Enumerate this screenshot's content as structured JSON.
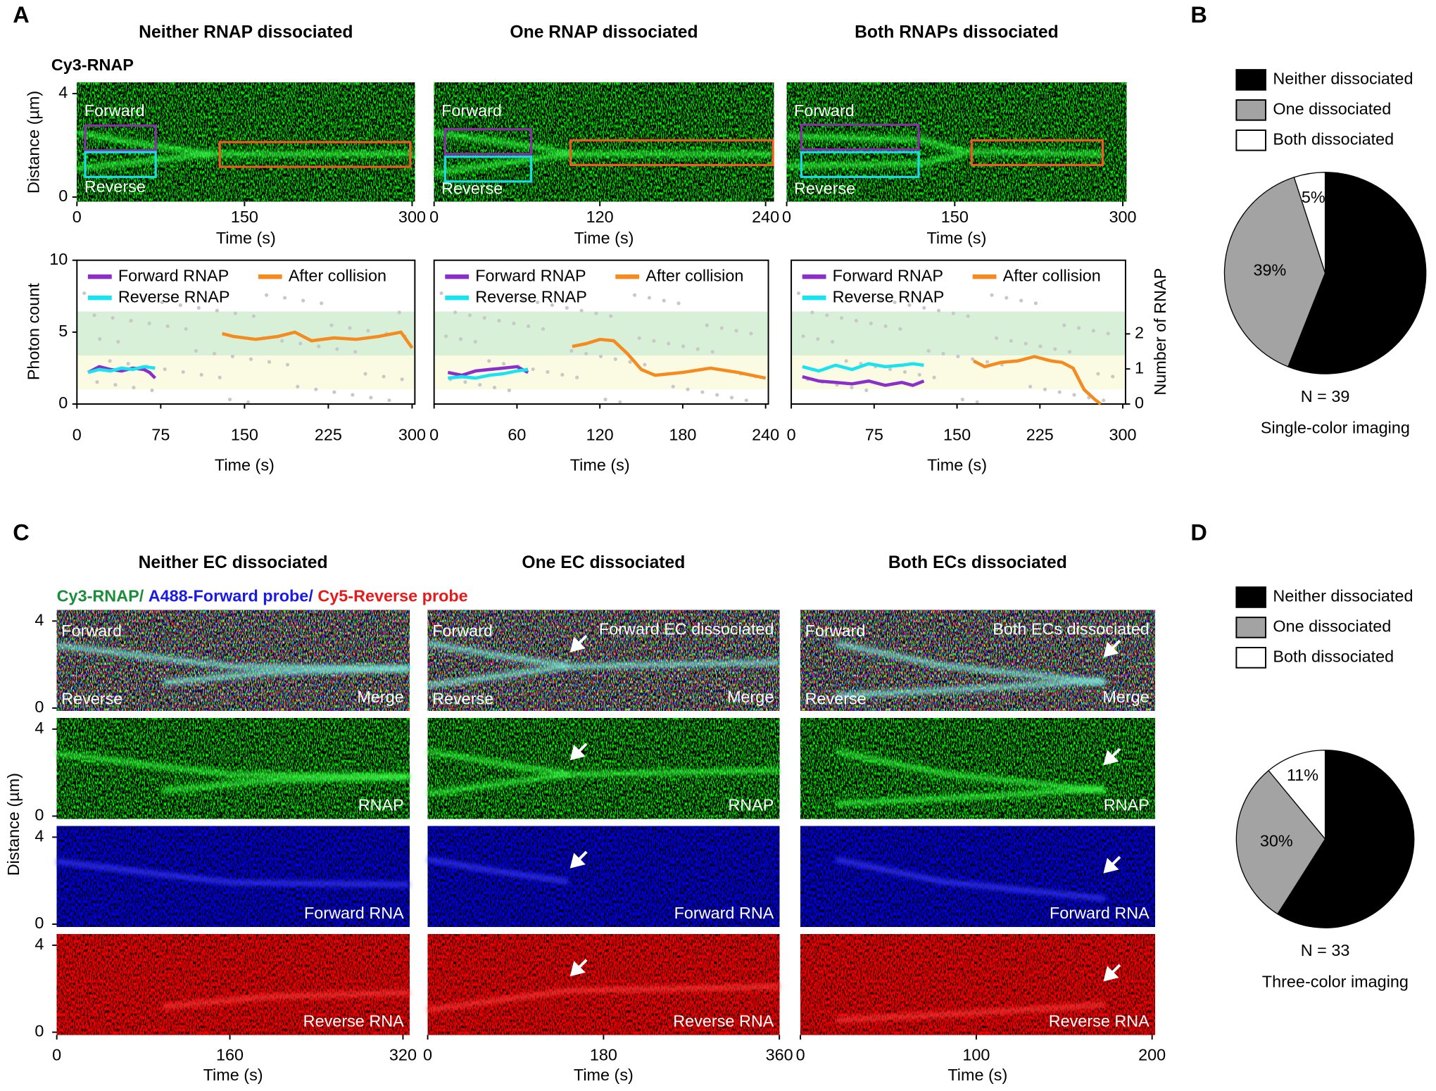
{
  "panel_labels": [
    "A",
    "B",
    "C",
    "D"
  ],
  "panel_a_channel": "Cy3-RNAP",
  "panel_c_channels": [
    "Cy3-RNAP/",
    "A488-Forward probe/",
    "Cy5-Reverse probe"
  ],
  "chart_data": [
    {
      "type": "kymograph",
      "title": "Neither RNAP dissociated",
      "xlim": [
        0,
        300
      ],
      "xticks": [
        0,
        150,
        300
      ],
      "ylim": [
        0,
        4.4
      ],
      "yticks": [
        0,
        4
      ],
      "xlabel": "Time (s)",
      "ylabel": "Distance (µm)",
      "labels": [
        "Forward",
        "Reverse"
      ]
    },
    {
      "type": "kymograph",
      "title": "One RNAP dissociated",
      "xlim": [
        0,
        240
      ],
      "xticks": [
        0,
        120,
        240
      ],
      "ylim": [
        0,
        4.4
      ],
      "xlabel": "Time (s)",
      "labels": [
        "Forward",
        "Reverse"
      ]
    },
    {
      "type": "kymograph",
      "title": "Both RNAPs dissociated",
      "xlim": [
        0,
        300
      ],
      "xticks": [
        0,
        150,
        300
      ],
      "ylim": [
        0,
        4.4
      ],
      "xlabel": "Time (s)",
      "labels": [
        "Forward",
        "Reverse"
      ]
    },
    {
      "type": "line",
      "xlim": [
        0,
        300
      ],
      "xticks": [
        0,
        75,
        150,
        225,
        300
      ],
      "ylim": [
        0,
        10
      ],
      "yticks": [
        0,
        5,
        10
      ],
      "ylabel": "Photon count",
      "xlabel": "Time (s)",
      "series": [
        {
          "name": "Forward RNAP",
          "color": "#8b2fc9",
          "x": [
            10,
            20,
            30,
            40,
            50,
            60,
            65,
            70
          ],
          "values": [
            2.2,
            2.6,
            2.4,
            2.3,
            2.5,
            2.4,
            2.2,
            1.8
          ]
        },
        {
          "name": "Reverse RNAP",
          "color": "#19e3ef",
          "x": [
            10,
            20,
            30,
            40,
            50,
            60,
            70
          ],
          "values": [
            2.2,
            2.4,
            2.3,
            2.5,
            2.4,
            2.6,
            2.5
          ]
        },
        {
          "name": "After collision",
          "color": "#f58a1f",
          "x": [
            130,
            140,
            160,
            180,
            195,
            210,
            230,
            250,
            270,
            290,
            300
          ],
          "values": [
            4.9,
            4.7,
            4.5,
            4.7,
            5.0,
            4.4,
            4.6,
            4.5,
            4.7,
            5.0,
            3.9
          ]
        }
      ]
    },
    {
      "type": "line",
      "xlim": [
        0,
        240
      ],
      "xticks": [
        0,
        60,
        120,
        180,
        240
      ],
      "ylim": [
        0,
        10
      ],
      "xlabel": "Time (s)",
      "series": [
        {
          "name": "Forward RNAP",
          "color": "#8b2fc9",
          "x": [
            10,
            20,
            30,
            40,
            50,
            60,
            68
          ],
          "values": [
            2.2,
            2.0,
            2.3,
            2.4,
            2.5,
            2.6,
            2.2
          ]
        },
        {
          "name": "Reverse RNAP",
          "color": "#19e3ef",
          "x": [
            10,
            20,
            30,
            40,
            50,
            60,
            68
          ],
          "values": [
            1.8,
            1.9,
            1.8,
            2.0,
            2.1,
            2.3,
            2.4
          ]
        },
        {
          "name": "After collision",
          "color": "#f58a1f",
          "x": [
            100,
            110,
            120,
            130,
            140,
            150,
            160,
            180,
            200,
            220,
            240
          ],
          "values": [
            4.0,
            4.2,
            4.5,
            4.4,
            3.5,
            2.4,
            2.0,
            2.2,
            2.5,
            2.2,
            1.8
          ]
        }
      ]
    },
    {
      "type": "line",
      "xlim": [
        0,
        300
      ],
      "xticks": [
        0,
        75,
        150,
        225,
        300
      ],
      "ylim": [
        0,
        10
      ],
      "y2lim": [
        0,
        4.1
      ],
      "y2ticks": [
        0,
        1,
        2
      ],
      "y2label": "Number of RNAP",
      "xlabel": "Time (s)",
      "series": [
        {
          "name": "Forward RNAP",
          "color": "#8b2fc9",
          "x": [
            10,
            25,
            40,
            55,
            70,
            85,
            100,
            110,
            120
          ],
          "values": [
            1.9,
            1.6,
            1.5,
            1.4,
            1.6,
            1.3,
            1.5,
            1.3,
            1.6
          ]
        },
        {
          "name": "Reverse RNAP",
          "color": "#19e3ef",
          "x": [
            10,
            25,
            40,
            55,
            70,
            85,
            100,
            110,
            120
          ],
          "values": [
            2.6,
            2.3,
            2.7,
            2.4,
            2.8,
            2.6,
            2.7,
            2.8,
            2.7
          ]
        },
        {
          "name": "After collision",
          "color": "#f58a1f",
          "x": [
            165,
            175,
            190,
            205,
            220,
            235,
            245,
            255,
            265,
            275,
            280
          ],
          "values": [
            3.0,
            2.6,
            2.9,
            3.0,
            3.3,
            3.0,
            2.9,
            2.5,
            1.0,
            0.3,
            0.0
          ]
        }
      ]
    },
    {
      "type": "pie",
      "categories": [
        "Neither dissociated",
        "One dissociated",
        "Both dissociated"
      ],
      "values": [
        56,
        39,
        5
      ],
      "value_labels": [
        "56%",
        "39%",
        "5%"
      ],
      "colors": [
        "#000000",
        "#a3a3a3",
        "#ffffff"
      ],
      "n_label": "N = 39",
      "caption": "Single-color imaging"
    },
    {
      "type": "pie",
      "categories": [
        "Neither dissociated",
        "One dissociated",
        "Both dissociated"
      ],
      "values": [
        59,
        30,
        11
      ],
      "value_labels": [
        "59%",
        "30%",
        "11%"
      ],
      "colors": [
        "#000000",
        "#a3a3a3",
        "#ffffff"
      ],
      "n_label": "N = 33",
      "caption": "Three-color imaging"
    },
    {
      "type": "kymograph-stack",
      "title": "Neither EC dissociated",
      "xlim": [
        0,
        320
      ],
      "xticks": [
        0,
        160,
        320
      ],
      "ylim": [
        0,
        4.6
      ],
      "yticks": [
        0,
        4
      ],
      "xlabel": "Time (s)",
      "ylabel": "Distance (µm)",
      "rows": [
        "Merge",
        "RNAP",
        "Forward RNA",
        "Reverse RNA"
      ],
      "labels": [
        "Forward",
        "Reverse"
      ]
    },
    {
      "type": "kymograph-stack",
      "title": "One EC dissociated",
      "xlim": [
        0,
        360
      ],
      "xticks": [
        0,
        180,
        360
      ],
      "ylim": [
        0,
        4.6
      ],
      "xlabel": "Time (s)",
      "rows": [
        "Merge",
        "RNAP",
        "Forward RNA",
        "Reverse RNA"
      ],
      "labels": [
        "Forward",
        "Reverse"
      ],
      "annotation": "Forward EC dissociated"
    },
    {
      "type": "kymograph-stack",
      "title": "Both ECs dissociated",
      "xlim": [
        0,
        200
      ],
      "xticks": [
        0,
        100,
        200
      ],
      "ylim": [
        0,
        4.6
      ],
      "xlabel": "Time (s)",
      "rows": [
        "Merge",
        "RNAP",
        "Forward RNA",
        "Reverse RNA"
      ],
      "labels": [
        "Forward",
        "Reverse"
      ],
      "annotation": "Both ECs dissociated"
    }
  ]
}
